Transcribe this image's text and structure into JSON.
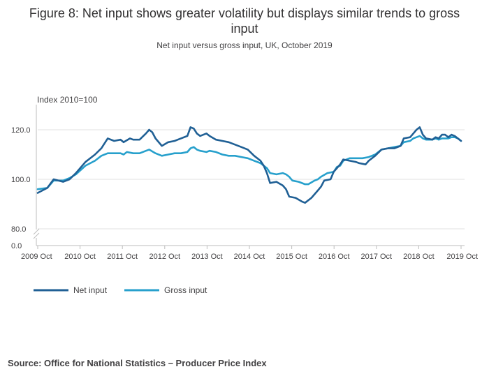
{
  "page": {
    "title": "Figure 8: Net input shows greater volatility but displays similar trends to gross input",
    "subtitle": "Net input versus gross input, UK, October 2019",
    "source": "Source: Office for National Statistics – Producer Price Index"
  },
  "chart_data": {
    "type": "line",
    "ylabel": "Index 2010=100",
    "ylim": [
      0,
      130
    ],
    "y_axis_break": [
      0,
      80
    ],
    "yticks": [
      "0.0",
      "80.0",
      "100.0",
      "120.0"
    ],
    "x_ticks": [
      "2009 Oct",
      "2010 Oct",
      "2011 Oct",
      "2012 Oct",
      "2013 Oct",
      "2014 Oct",
      "2015 Oct",
      "2016 Oct",
      "2017 Oct",
      "2018 Oct",
      "2019 Oct"
    ],
    "x_range": [
      "2009 Oct",
      "2019 Oct"
    ],
    "grid": "horizontal",
    "legend_position": "bottom-left",
    "colors": {
      "net": "#206095",
      "gross": "#27a0cc",
      "grid": "#e0e0e0",
      "axis": "#bdbdbd"
    },
    "series": [
      {
        "name": "Net input",
        "color": "#206095",
        "values": [
          [
            0,
            94.5
          ],
          [
            3,
            96.5
          ],
          [
            5,
            100
          ],
          [
            8,
            99
          ],
          [
            10,
            100
          ],
          [
            12,
            102.5
          ],
          [
            15,
            107
          ],
          [
            18,
            110
          ],
          [
            20,
            112.5
          ],
          [
            22,
            116.5
          ],
          [
            24,
            115.5
          ],
          [
            26,
            116
          ],
          [
            27,
            115
          ],
          [
            29,
            116.5
          ],
          [
            30,
            116
          ],
          [
            32,
            116
          ],
          [
            34,
            118.5
          ],
          [
            35,
            120
          ],
          [
            36,
            119
          ],
          [
            37,
            116.5
          ],
          [
            39,
            113.5
          ],
          [
            41,
            115
          ],
          [
            43,
            115.5
          ],
          [
            45,
            116.5
          ],
          [
            47,
            117.5
          ],
          [
            48,
            121
          ],
          [
            49,
            120.5
          ],
          [
            50,
            118.5
          ],
          [
            51,
            117.5
          ],
          [
            53,
            118.5
          ],
          [
            54,
            117.5
          ],
          [
            56,
            116
          ],
          [
            58,
            115.5
          ],
          [
            60,
            115
          ],
          [
            62,
            114
          ],
          [
            64,
            113
          ],
          [
            66,
            112
          ],
          [
            68,
            109.5
          ],
          [
            70,
            107.5
          ],
          [
            71,
            105.5
          ],
          [
            72,
            102.5
          ],
          [
            73,
            98.5
          ],
          [
            75,
            99
          ],
          [
            77,
            97.5
          ],
          [
            78,
            96
          ],
          [
            79,
            93
          ],
          [
            81,
            92.5
          ],
          [
            83,
            91
          ],
          [
            84,
            90.5
          ],
          [
            86,
            92.5
          ],
          [
            88,
            95.5
          ],
          [
            89,
            97
          ],
          [
            90,
            99.5
          ],
          [
            92,
            100
          ],
          [
            93,
            103
          ],
          [
            94,
            104.5
          ],
          [
            95,
            106
          ],
          [
            96,
            108
          ],
          [
            98,
            107.5
          ],
          [
            100,
            107
          ],
          [
            101,
            106.5
          ],
          [
            103,
            106
          ],
          [
            104,
            107.5
          ],
          [
            106,
            109.5
          ],
          [
            108,
            112
          ],
          [
            110,
            112.5
          ],
          [
            112,
            112.5
          ],
          [
            114,
            113.5
          ],
          [
            115,
            116.5
          ],
          [
            117,
            117
          ],
          [
            118,
            118.5
          ],
          [
            119,
            120
          ],
          [
            120,
            121
          ],
          [
            121,
            118
          ],
          [
            122,
            116.5
          ],
          [
            124,
            116
          ],
          [
            125,
            117
          ],
          [
            126,
            116.5
          ],
          [
            127,
            118
          ],
          [
            128,
            118
          ],
          [
            129,
            117
          ],
          [
            130,
            118
          ],
          [
            131,
            117.5
          ],
          [
            132,
            116.5
          ],
          [
            133,
            115.5
          ]
        ]
      },
      {
        "name": "Gross input",
        "color": "#27a0cc",
        "values": [
          [
            0,
            96
          ],
          [
            3,
            96.5
          ],
          [
            5,
            99.5
          ],
          [
            8,
            99.5
          ],
          [
            10,
            100.5
          ],
          [
            12,
            102
          ],
          [
            15,
            105.5
          ],
          [
            18,
            107.5
          ],
          [
            20,
            109.5
          ],
          [
            22,
            110.5
          ],
          [
            24,
            110.5
          ],
          [
            26,
            110.5
          ],
          [
            27,
            110
          ],
          [
            28,
            111
          ],
          [
            30,
            110.5
          ],
          [
            32,
            110.5
          ],
          [
            34,
            111.5
          ],
          [
            35,
            112
          ],
          [
            37,
            110.5
          ],
          [
            39,
            109.5
          ],
          [
            41,
            110
          ],
          [
            43,
            110.5
          ],
          [
            45,
            110.5
          ],
          [
            47,
            111
          ],
          [
            48,
            112.5
          ],
          [
            49,
            113
          ],
          [
            50,
            112
          ],
          [
            51,
            111.5
          ],
          [
            53,
            111
          ],
          [
            54,
            111.5
          ],
          [
            56,
            111
          ],
          [
            58,
            110
          ],
          [
            60,
            109.5
          ],
          [
            62,
            109.5
          ],
          [
            64,
            109
          ],
          [
            66,
            108.5
          ],
          [
            68,
            107.5
          ],
          [
            70,
            106.5
          ],
          [
            71,
            105.5
          ],
          [
            72,
            104.5
          ],
          [
            73,
            102.5
          ],
          [
            75,
            102
          ],
          [
            77,
            102.5
          ],
          [
            78,
            102
          ],
          [
            79,
            101
          ],
          [
            80,
            99.5
          ],
          [
            82,
            99
          ],
          [
            84,
            98
          ],
          [
            85,
            98
          ],
          [
            87,
            99.5
          ],
          [
            88,
            100
          ],
          [
            89,
            101
          ],
          [
            91,
            102.5
          ],
          [
            93,
            103
          ],
          [
            94,
            105
          ],
          [
            95,
            105.5
          ],
          [
            96,
            107.5
          ],
          [
            98,
            108.5
          ],
          [
            100,
            108.5
          ],
          [
            102,
            108.5
          ],
          [
            104,
            109
          ],
          [
            106,
            110
          ],
          [
            108,
            112
          ],
          [
            110,
            112.5
          ],
          [
            112,
            113
          ],
          [
            114,
            113.5
          ],
          [
            115,
            115
          ],
          [
            117,
            115.5
          ],
          [
            118,
            116.5
          ],
          [
            119,
            117
          ],
          [
            120,
            117.5
          ],
          [
            121,
            116.5
          ],
          [
            122,
            116
          ],
          [
            124,
            116
          ],
          [
            125,
            116.5
          ],
          [
            126,
            116
          ],
          [
            127,
            116.5
          ],
          [
            128,
            116.5
          ],
          [
            129,
            116.5
          ],
          [
            130,
            117
          ],
          [
            131,
            117
          ],
          [
            132,
            116.5
          ],
          [
            133,
            115.5
          ]
        ]
      }
    ]
  }
}
